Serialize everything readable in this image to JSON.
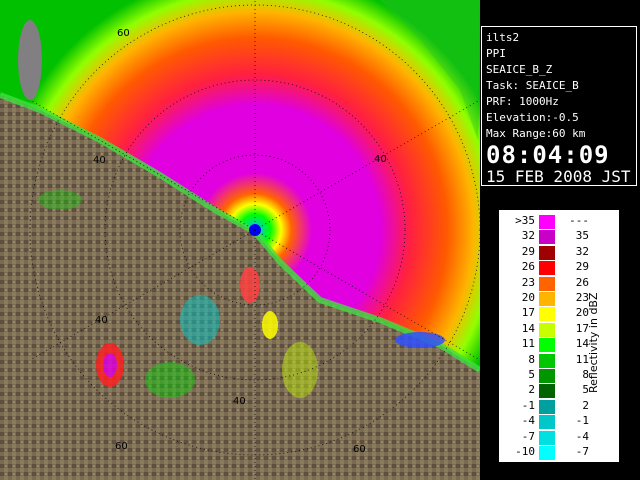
{
  "info": {
    "site": "ilts2",
    "scan_type": "PPI",
    "product": "SEAICE_B_Z",
    "task": "Task: SEAICE_B",
    "prf": "PRF: 1000Hz",
    "elevation": "Elevation:-0.5",
    "max_range": "Max Range:60 km",
    "time": "08:04:09",
    "date": "15 FEB 2008 JST"
  },
  "legend": {
    "unit_label": "Reflectivity in dBZ",
    "rows": [
      {
        "lo": ">35",
        "hi": "---",
        "color": "#ff00ff"
      },
      {
        "lo": "32",
        "hi": "35",
        "color": "#c800c8"
      },
      {
        "lo": "29",
        "hi": "32",
        "color": "#a00000"
      },
      {
        "lo": "26",
        "hi": "29",
        "color": "#ff0000"
      },
      {
        "lo": "23",
        "hi": "26",
        "color": "#ff6400"
      },
      {
        "lo": "20",
        "hi": "23",
        "color": "#ffb400"
      },
      {
        "lo": "17",
        "hi": "20",
        "color": "#ffff00"
      },
      {
        "lo": "14",
        "hi": "17",
        "color": "#c8ff00"
      },
      {
        "lo": "11",
        "hi": "14",
        "color": "#00ff00"
      },
      {
        "lo": "8",
        "hi": "11",
        "color": "#00c800"
      },
      {
        "lo": "5",
        "hi": "8",
        "color": "#009600"
      },
      {
        "lo": "2",
        "hi": "5",
        "color": "#006400"
      },
      {
        "lo": "-1",
        "hi": "2",
        "color": "#00a0a0"
      },
      {
        "lo": "-4",
        "hi": "-1",
        "color": "#00c8c8"
      },
      {
        "lo": "-7",
        "hi": "-4",
        "color": "#00e0e0"
      },
      {
        "lo": "-10",
        "hi": "-7",
        "color": "#00ffff"
      }
    ]
  },
  "range_rings": {
    "labels_km": [
      "40",
      "60",
      "40",
      "40",
      "40",
      "60",
      "60"
    ],
    "ring_km": [
      20,
      40,
      60
    ]
  },
  "colors": {
    "land": "#7a6a50",
    "sea_echo": "#ff5a00",
    "core_echo": "#e000e0",
    "radar_site": "#0000ff"
  }
}
